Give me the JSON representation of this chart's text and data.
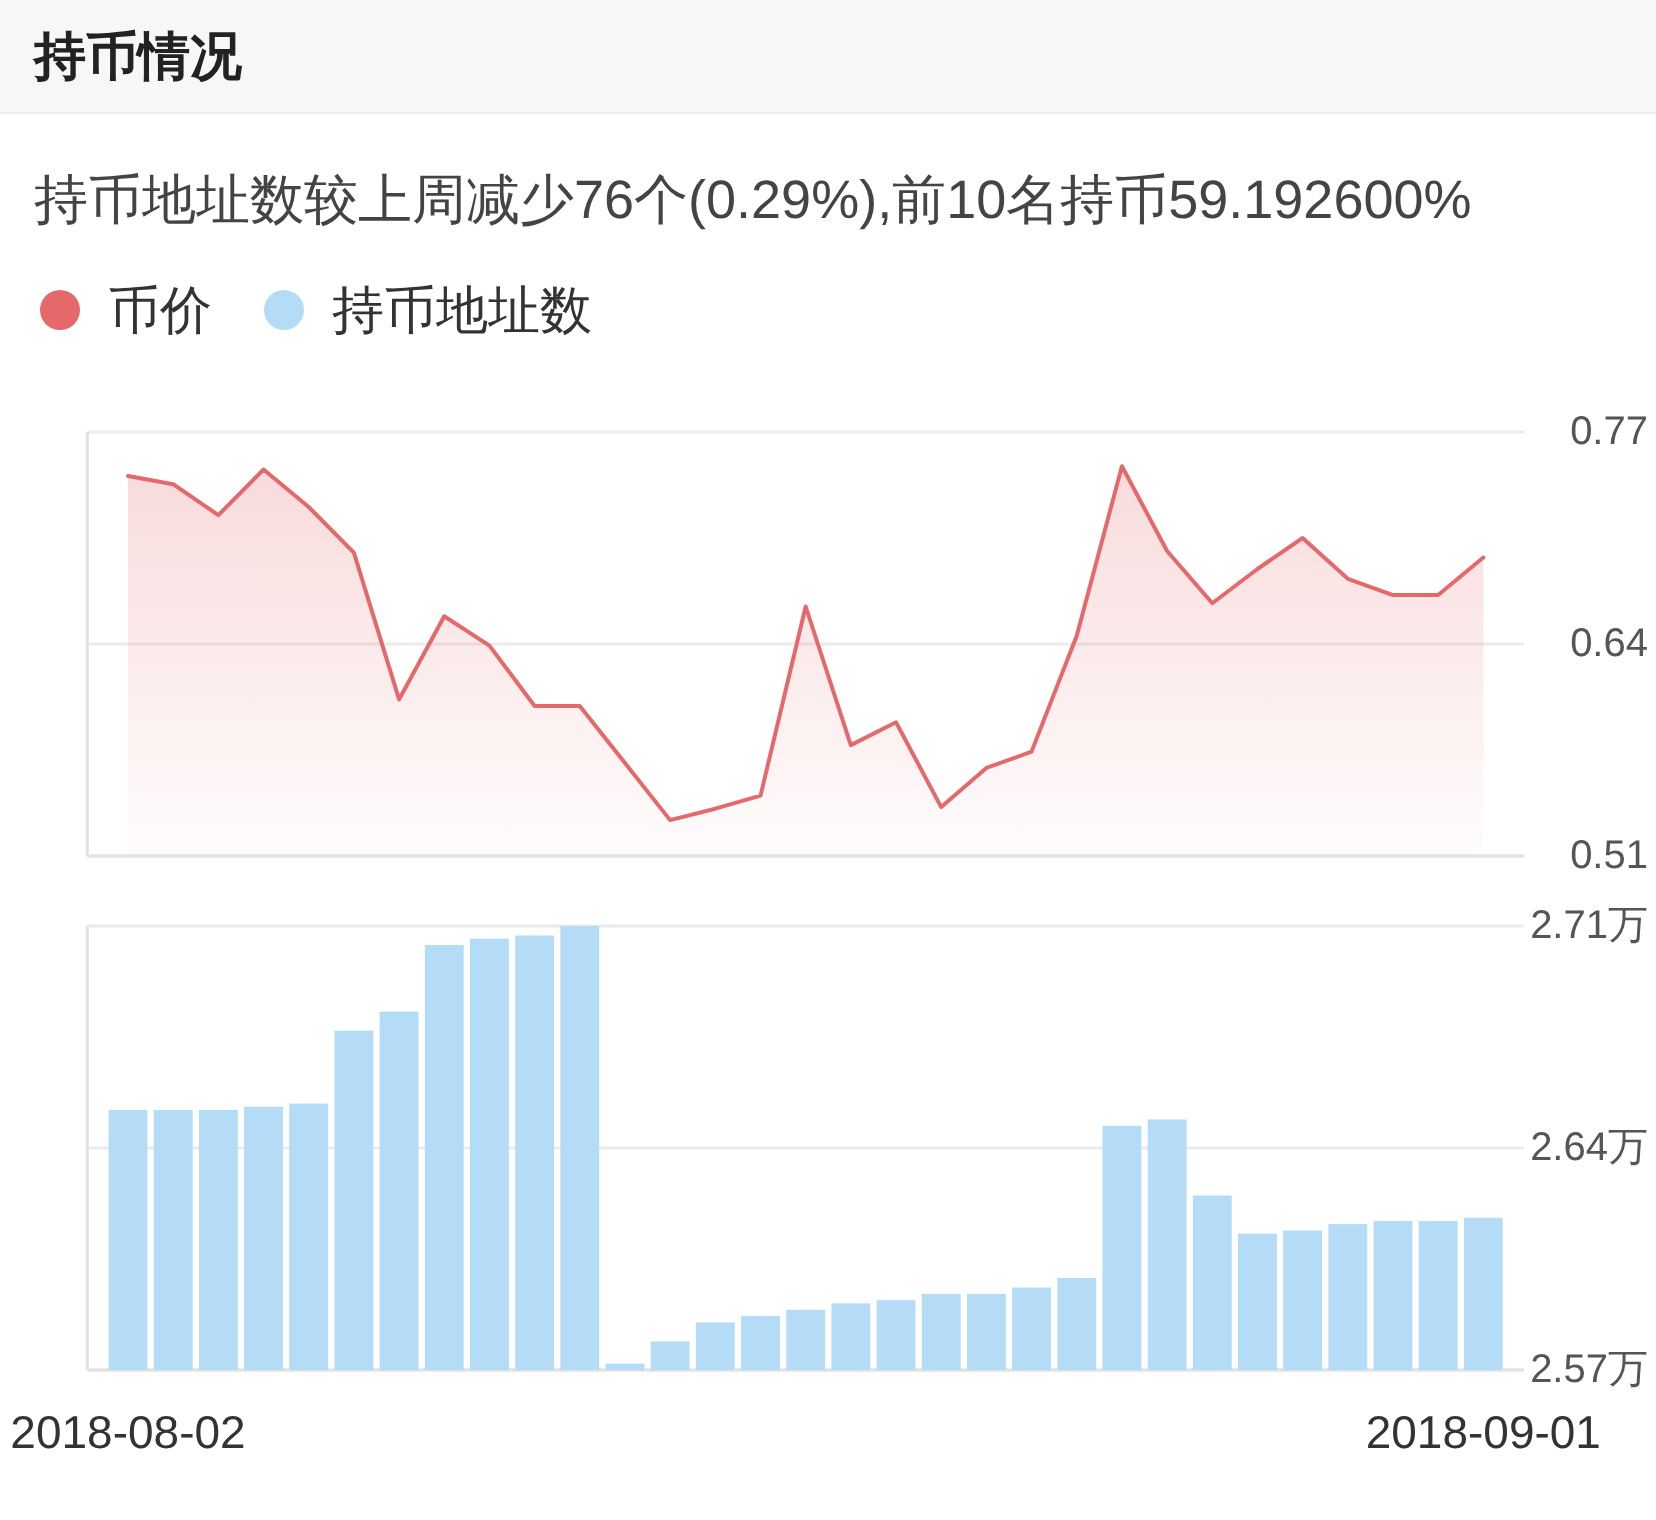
{
  "chart_data": [
    {
      "type": "area",
      "title": "持币情况",
      "subtitle": "持币地址数较上周减少76个(0.29%),前10名持币59.192600%",
      "categories": [
        null,
        null,
        null,
        null,
        null,
        null,
        null,
        null,
        null,
        null,
        null,
        null,
        null,
        null,
        null,
        null,
        null,
        null,
        null,
        null,
        null,
        null,
        null,
        null,
        null,
        null,
        null,
        null,
        null,
        null,
        null
      ],
      "series": [
        {
          "name": "币价",
          "color": "#e5696b",
          "values": [
            0.743,
            0.738,
            0.719,
            0.747,
            0.724,
            0.696,
            0.606,
            0.657,
            0.639,
            0.602,
            0.602,
            0.567,
            0.532,
            0.539,
            0.547,
            0.663,
            0.578,
            0.592,
            0.54,
            0.564,
            0.574,
            0.645,
            0.749,
            0.697,
            0.665,
            0.686,
            0.705,
            0.68,
            0.67,
            0.67,
            0.693
          ]
        }
      ],
      "ylim": [
        0.51,
        0.77
      ],
      "yticks": [
        0.51,
        0.64,
        0.77
      ],
      "grid": "y",
      "legend": "top left",
      "tick_labels": "y"
    },
    {
      "type": "bar",
      "categories": [
        "2018-08-02",
        null,
        null,
        null,
        null,
        null,
        null,
        null,
        null,
        null,
        null,
        null,
        null,
        null,
        null,
        null,
        null,
        null,
        null,
        null,
        null,
        null,
        null,
        null,
        null,
        null,
        null,
        null,
        null,
        null,
        "2018-09-01"
      ],
      "series": [
        {
          "name": "持币地址数",
          "color": "#b4dcf7",
          "values": [
            2.652,
            2.652,
            2.652,
            2.653,
            2.654,
            2.677,
            2.683,
            2.704,
            2.706,
            2.707,
            2.71,
            2.572,
            2.579,
            2.585,
            2.587,
            2.589,
            2.591,
            2.592,
            2.594,
            2.594,
            2.596,
            2.599,
            2.647,
            2.649,
            2.625,
            2.613,
            2.614,
            2.616,
            2.617,
            2.617,
            2.618
          ]
        }
      ],
      "ylim": [
        2.57,
        2.71
      ],
      "yticks": [
        {
          "value": 2.57,
          "label": "2.57万"
        },
        {
          "value": 2.64,
          "label": "2.64万"
        },
        {
          "value": 2.71,
          "label": "2.71万"
        }
      ],
      "grid": "y",
      "legend": "top left"
    }
  ]
}
